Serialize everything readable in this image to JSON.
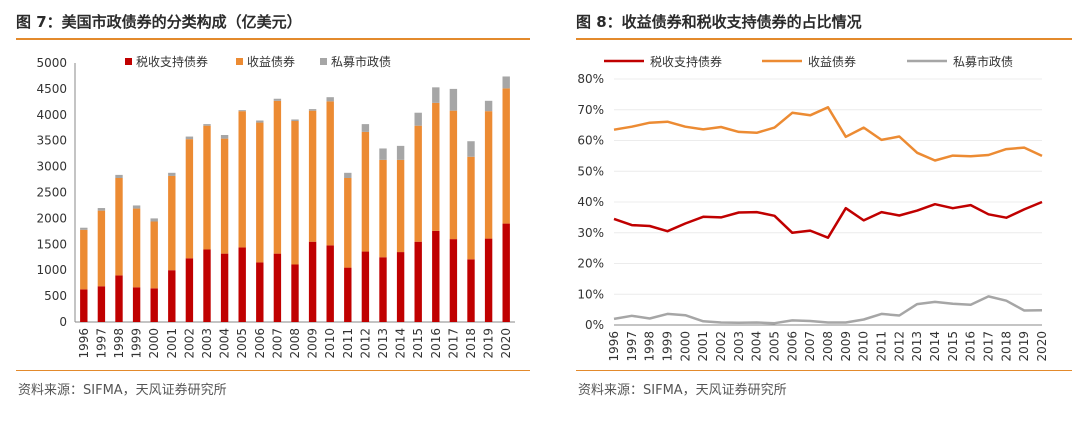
{
  "figure_left": {
    "title": "图 7：美国市政债券的分类构成（亿美元）",
    "source": "资料来源：SIFMA，天风证券研究所"
  },
  "figure_right": {
    "title": "图 8：收益债券和税收支持债券的占比情况",
    "source": "资料来源：SIFMA，天风证券研究所"
  },
  "colors": {
    "tax": "#c00000",
    "revenue": "#ec8b33",
    "private": "#a6a6a6",
    "accent": "#e38a2c"
  },
  "chart_data": [
    {
      "type": "bar",
      "stacked": true,
      "title": "图 7：美国市政债券的分类构成（亿美元）",
      "categories": [
        "1996",
        "1997",
        "1998",
        "1999",
        "2000",
        "2001",
        "2002",
        "2003",
        "2004",
        "2005",
        "2006",
        "2007",
        "2008",
        "2009",
        "2010",
        "2011",
        "2012",
        "2013",
        "2014",
        "2015",
        "2016",
        "2017",
        "2018",
        "2019",
        "2020"
      ],
      "series": [
        {
          "name": "税收支持债券",
          "values": [
            630,
            690,
            900,
            670,
            650,
            1000,
            1230,
            1400,
            1320,
            1440,
            1150,
            1320,
            1110,
            1550,
            1480,
            1050,
            1360,
            1250,
            1350,
            1550,
            1760,
            1600,
            1210,
            1610,
            1900
          ]
        },
        {
          "name": "收益债券",
          "values": [
            1150,
            1460,
            1880,
            1520,
            1290,
            1820,
            2300,
            2390,
            2220,
            2630,
            2700,
            2950,
            2770,
            2530,
            2780,
            1730,
            2310,
            1880,
            1780,
            2240,
            2470,
            2480,
            1980,
            2460,
            2610
          ]
        },
        {
          "name": "私募市政债",
          "values": [
            40,
            50,
            60,
            60,
            60,
            60,
            50,
            30,
            70,
            20,
            40,
            40,
            30,
            30,
            80,
            100,
            150,
            220,
            270,
            250,
            300,
            420,
            300,
            200,
            230
          ]
        }
      ],
      "ylim": [
        0,
        5000
      ],
      "yticks": [
        "0",
        "500",
        "1000",
        "1500",
        "2000",
        "2500",
        "3000",
        "3500",
        "4000",
        "4500",
        "5000"
      ],
      "legend": "top"
    },
    {
      "type": "line",
      "title": "图 8：收益债券和税收支持债券的占比情况",
      "x": [
        "1996",
        "1997",
        "1998",
        "1999",
        "2000",
        "2001",
        "2002",
        "2003",
        "2004",
        "2005",
        "2006",
        "2007",
        "2008",
        "2009",
        "2010",
        "2011",
        "2012",
        "2013",
        "2014",
        "2015",
        "2016",
        "2017",
        "2018",
        "2019",
        "2020"
      ],
      "series": [
        {
          "name": "税收支持债券",
          "values": [
            34.5,
            32.5,
            32.2,
            30.5,
            33.0,
            35.2,
            35.0,
            36.6,
            36.7,
            35.5,
            30.0,
            30.7,
            28.4,
            38.0,
            34.0,
            36.7,
            35.6,
            37.2,
            39.3,
            38.0,
            39.0,
            36.0,
            34.9,
            37.6,
            40.0
          ]
        },
        {
          "name": "收益债券",
          "values": [
            63.5,
            64.5,
            65.8,
            66.1,
            64.5,
            63.6,
            64.4,
            62.8,
            62.5,
            64.2,
            69.0,
            68.2,
            70.8,
            61.2,
            64.2,
            60.2,
            61.3,
            56.0,
            53.5,
            55.1,
            54.9,
            55.3,
            57.2,
            57.7,
            55.0
          ]
        },
        {
          "name": "私募市政债",
          "values": [
            2.0,
            3.0,
            2.1,
            3.6,
            3.2,
            1.2,
            0.8,
            0.7,
            0.8,
            0.6,
            1.5,
            1.3,
            0.8,
            0.8,
            1.8,
            3.6,
            3.1,
            6.8,
            7.5,
            6.9,
            6.6,
            9.3,
            7.9,
            4.7,
            4.8
          ]
        }
      ],
      "ylim": [
        0,
        80
      ],
      "yticks": [
        "0%",
        "10%",
        "20%",
        "30%",
        "40%",
        "50%",
        "60%",
        "70%",
        "80%"
      ],
      "legend": "top"
    }
  ]
}
